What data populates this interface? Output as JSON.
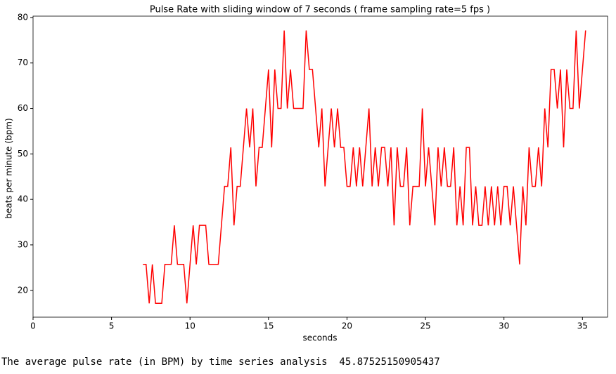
{
  "chart_data": {
    "type": "line",
    "title": "Pulse Rate with sliding window of 7 seconds  ( frame sampling rate=5 fps )",
    "xlabel": "seconds",
    "ylabel": "beats per minute (bpm)",
    "color": "#ff0000",
    "x": [
      7,
      7.2,
      7.4,
      7.6,
      7.8,
      8,
      8.2,
      8.4,
      8.6,
      8.8,
      9,
      9.2,
      9.4,
      9.6,
      9.8,
      10,
      10.2,
      10.4,
      10.6,
      10.8,
      11,
      11.2,
      11.4,
      11.6,
      11.8,
      12,
      12.2,
      12.4,
      12.6,
      12.8,
      13,
      13.2,
      13.4,
      13.6,
      13.8,
      14,
      14.2,
      14.4,
      14.6,
      14.8,
      15,
      15.2,
      15.4,
      15.6,
      15.8,
      16,
      16.2,
      16.4,
      16.6,
      16.8,
      17,
      17.2,
      17.4,
      17.6,
      17.8,
      18,
      18.2,
      18.4,
      18.6,
      18.8,
      19,
      19.2,
      19.4,
      19.6,
      19.8,
      20,
      20.2,
      20.4,
      20.6,
      20.8,
      21,
      21.2,
      21.4,
      21.6,
      21.8,
      22,
      22.2,
      22.4,
      22.6,
      22.8,
      23,
      23.2,
      23.4,
      23.6,
      23.8,
      24,
      24.2,
      24.4,
      24.6,
      24.8,
      25,
      25.2,
      25.4,
      25.6,
      25.8,
      26,
      26.2,
      26.4,
      26.6,
      26.8,
      27,
      27.2,
      27.4,
      27.6,
      27.8,
      28,
      28.2,
      28.4,
      28.6,
      28.8,
      29,
      29.2,
      29.4,
      29.6,
      29.8,
      30,
      30.2,
      30.4,
      30.6,
      30.8,
      31,
      31.2,
      31.4,
      31.6,
      31.8,
      32,
      32.2,
      32.4,
      32.6,
      32.8,
      33,
      33.2,
      33.4,
      33.6,
      33.8,
      34,
      34.2,
      34.4,
      34.6,
      34.8,
      35,
      35.2
    ],
    "values": [
      25.71,
      25.71,
      17.14,
      25.71,
      17.14,
      17.14,
      17.14,
      25.71,
      25.71,
      25.71,
      34.29,
      25.71,
      25.71,
      25.71,
      17.14,
      25.71,
      34.29,
      25.71,
      34.29,
      34.29,
      34.29,
      25.71,
      25.71,
      25.71,
      25.71,
      34.29,
      42.86,
      42.86,
      51.43,
      34.29,
      42.86,
      42.86,
      51.43,
      60,
      51.43,
      60,
      42.86,
      51.43,
      51.43,
      60,
      68.57,
      51.43,
      68.57,
      60,
      60,
      77.14,
      60,
      68.57,
      60,
      60,
      60,
      60,
      77.14,
      68.57,
      68.57,
      60,
      51.43,
      60,
      42.86,
      51.43,
      60,
      51.43,
      60,
      51.43,
      51.43,
      42.86,
      42.86,
      51.43,
      42.86,
      51.43,
      42.86,
      51.43,
      60,
      42.86,
      51.43,
      42.86,
      51.43,
      51.43,
      42.86,
      51.43,
      34.29,
      51.43,
      42.86,
      42.86,
      51.43,
      34.29,
      42.86,
      42.86,
      42.86,
      60,
      42.86,
      51.43,
      42.86,
      34.29,
      51.43,
      42.86,
      51.43,
      42.86,
      42.86,
      51.43,
      34.29,
      42.86,
      34.29,
      51.43,
      51.43,
      34.29,
      42.86,
      34.29,
      34.29,
      42.86,
      34.29,
      42.86,
      34.29,
      42.86,
      34.29,
      42.86,
      42.86,
      34.29,
      42.86,
      34.29,
      25.71,
      42.86,
      34.29,
      51.43,
      42.86,
      42.86,
      51.43,
      42.86,
      60,
      51.43,
      68.57,
      68.57,
      60,
      68.57,
      51.43,
      68.57,
      60,
      60,
      77.14,
      60,
      68.57,
      77.14
    ],
    "xlim": [
      0,
      36.6
    ],
    "ylim": [
      14.1,
      80.3
    ],
    "xticks": [
      0,
      5,
      10,
      15,
      20,
      25,
      30,
      35
    ],
    "yticks": [
      20,
      30,
      40,
      50,
      60,
      70,
      80
    ]
  },
  "output": "The average pulse rate (in BPM) by time series analysis  45.87525150905437"
}
